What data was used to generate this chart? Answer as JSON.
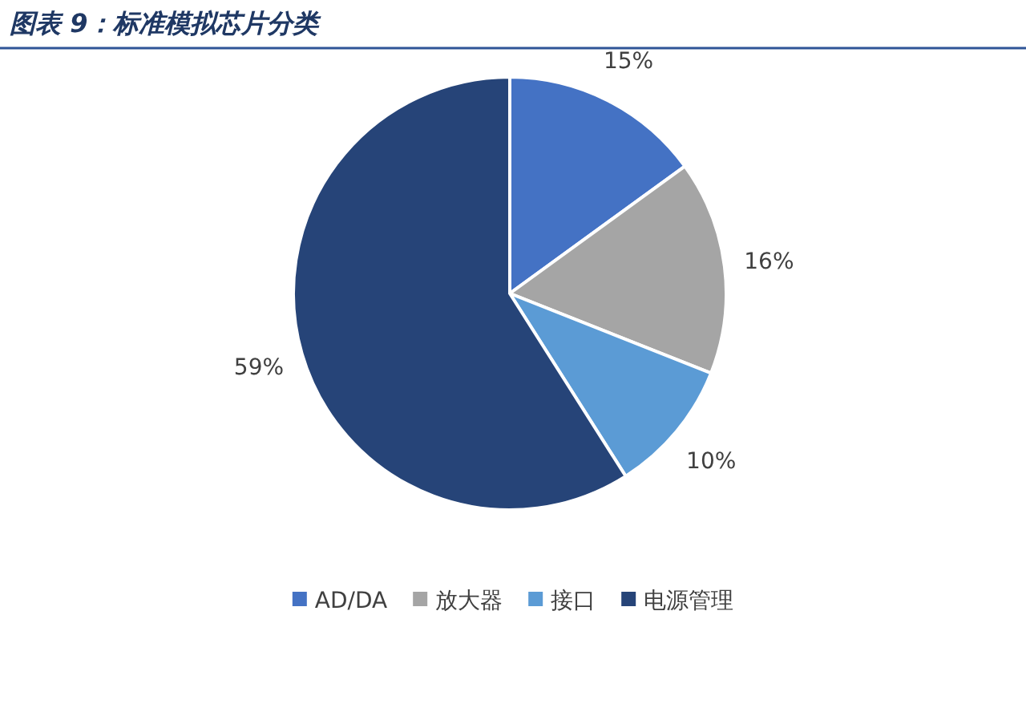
{
  "chart_data": {
    "type": "pie",
    "title": "图表 9：标准模拟芯片分类",
    "categories": [
      "AD/DA",
      "放大器",
      "接口",
      "电源管理"
    ],
    "values": [
      15,
      16,
      10,
      59
    ],
    "colors": [
      "#4472c4",
      "#a5a5a5",
      "#5b9bd5",
      "#264478"
    ],
    "value_labels": [
      "15%",
      "16%",
      "10%",
      "59%"
    ],
    "legend": "bottom"
  }
}
